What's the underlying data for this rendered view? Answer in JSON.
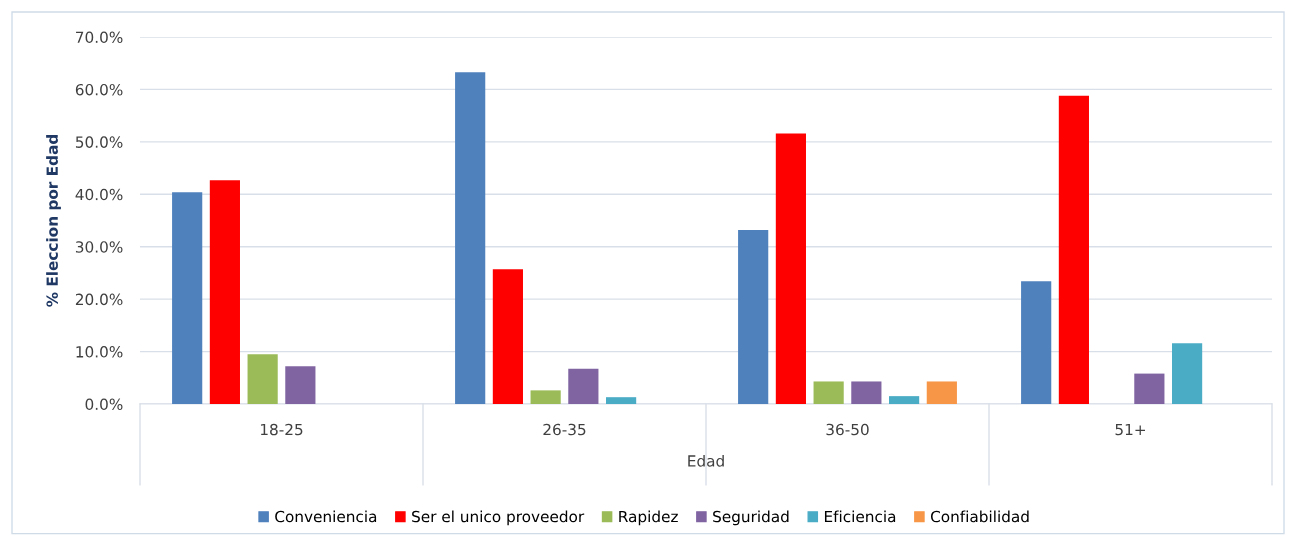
{
  "chart_data": {
    "type": "bar",
    "xlabel": "Edad",
    "ylabel": "% Eleccion por Edad",
    "categories": [
      "18-25",
      "26-35",
      "36-50",
      "51+"
    ],
    "series": [
      {
        "name": "Conveniencia",
        "color": "#4f81bd",
        "values": [
          40.4,
          63.3,
          33.2,
          23.4
        ]
      },
      {
        "name": "Ser el unico proveedor",
        "color": "#ff0000",
        "values": [
          42.7,
          25.7,
          51.6,
          58.8
        ]
      },
      {
        "name": "Rapidez",
        "color": "#9bbb59",
        "values": [
          9.5,
          2.6,
          4.3,
          null
        ]
      },
      {
        "name": "Seguridad",
        "color": "#8064a2",
        "values": [
          7.2,
          6.7,
          4.3,
          5.8
        ]
      },
      {
        "name": "Eficiencia",
        "color": "#4bacc6",
        "values": [
          null,
          1.3,
          1.5,
          11.6
        ]
      },
      {
        "name": "Confiabilidad",
        "color": "#f79646",
        "values": [
          null,
          null,
          4.3,
          null
        ]
      }
    ],
    "ylim": [
      0,
      70
    ],
    "yticks": [
      {
        "value": 0,
        "label": "0.0%"
      },
      {
        "value": 10,
        "label": "10.0%"
      },
      {
        "value": 20,
        "label": "20.0%"
      },
      {
        "value": 30,
        "label": "30.0%"
      },
      {
        "value": 40,
        "label": "40.0%"
      },
      {
        "value": 50,
        "label": "50.0%"
      },
      {
        "value": 60,
        "label": "60.0%"
      },
      {
        "value": 70,
        "label": "70.0%"
      }
    ],
    "grid": "y",
    "legend": "bottom"
  }
}
